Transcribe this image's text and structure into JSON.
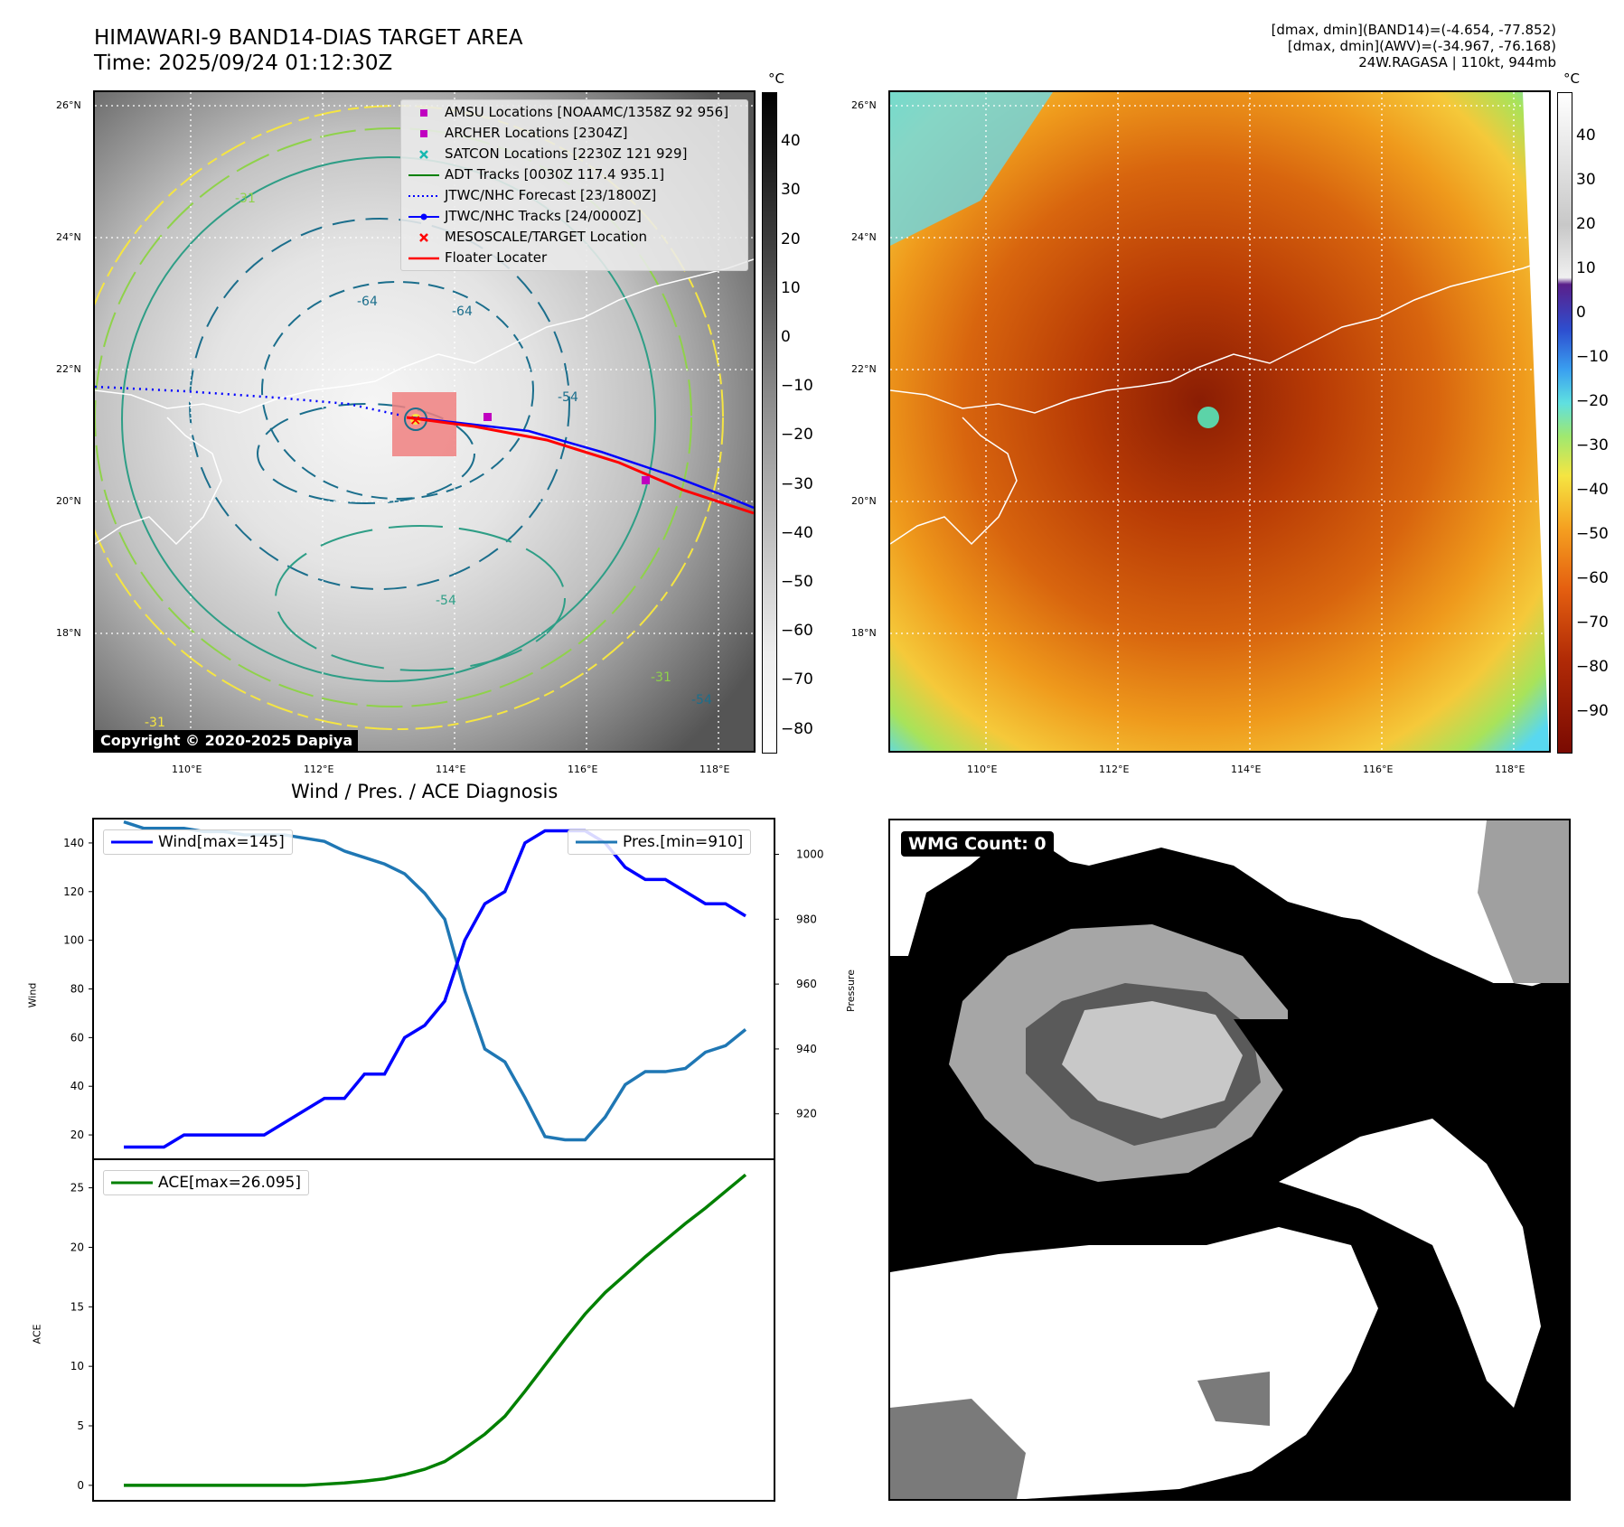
{
  "header": {
    "title_line1": "HIMAWARI-9 BAND14-DIAS TARGET AREA",
    "title_line2": "Time: 2025/09/24 01:12:30Z",
    "stats_line1": "[dmax, dmin](BAND14)=(-4.654, -77.852)",
    "stats_line2": "[dmax, dmin](AWV)=(-34.967, -76.168)",
    "stats_line3": "24W.RAGASA | 110kt, 944mb"
  },
  "map": {
    "lat_labels": [
      "26°N",
      "24°N",
      "22°N",
      "20°N",
      "18°N"
    ],
    "lon_labels": [
      "110°E",
      "112°E",
      "114°E",
      "116°E",
      "118°E"
    ],
    "contour_labels": [
      "-64",
      "-64",
      "-54",
      "-54",
      "-31",
      "-31",
      "-31",
      "-54"
    ],
    "copyright": "Copyright © 2020-2025 Dapiya",
    "legend": [
      {
        "label": "AMSU Locations [NOAAMC/1358Z 92 956]",
        "symbol": "square",
        "color": "#c000c0"
      },
      {
        "label": "ARCHER Locations [2304Z]",
        "symbol": "square",
        "color": "#c000c0"
      },
      {
        "label": "SATCON Locations [2230Z 121 929]",
        "symbol": "x",
        "color": "#17b8b0"
      },
      {
        "label": "ADT Tracks [0030Z 117.4 935.1]",
        "symbol": "line",
        "color": "#008000"
      },
      {
        "label": "JTWC/NHC Forecast [23/1800Z]",
        "symbol": "dotted",
        "color": "#0000ff"
      },
      {
        "label": "JTWC/NHC Tracks [24/0000Z]",
        "symbol": "line-dot",
        "color": "#0000ff"
      },
      {
        "label": "MESOSCALE/TARGET Location",
        "symbol": "x",
        "color": "#ff0000"
      },
      {
        "label": "Floater Locater",
        "symbol": "line",
        "color": "#ff0000"
      }
    ],
    "colorbar_unit": "°C",
    "gray_colorbar_ticks": [
      40,
      30,
      20,
      10,
      0,
      -10,
      -20,
      -30,
      -40,
      -50,
      -60,
      -70,
      -80
    ],
    "color_colorbar_ticks": [
      40,
      30,
      20,
      10,
      0,
      -10,
      -20,
      -30,
      -40,
      -50,
      -60,
      -70,
      -80,
      -90
    ]
  },
  "diagnosis": {
    "title": "Wind / Pres. / ACE Diagnosis",
    "wbox_label": "WMG Count: 0"
  },
  "chart_data": [
    {
      "type": "line",
      "title": "Wind / Pres. / ACE Diagnosis",
      "ylabel": "Wind",
      "y2label": "Pressure",
      "ylim": [
        10,
        150
      ],
      "y2lim": [
        906,
        1011
      ],
      "yticks": [
        20,
        40,
        60,
        80,
        100,
        120,
        140
      ],
      "y2ticks": [
        920,
        940,
        960,
        980,
        1000
      ],
      "series": [
        {
          "name": "Wind[max=145]",
          "axis": "left",
          "color": "#0000ff",
          "values": [
            15,
            15,
            15,
            20,
            20,
            20,
            20,
            20,
            25,
            30,
            35,
            35,
            45,
            45,
            60,
            65,
            75,
            100,
            115,
            120,
            140,
            145,
            145,
            145,
            140,
            130,
            125,
            125,
            120,
            115,
            115,
            110
          ]
        },
        {
          "name": "Pres.[min=910]",
          "axis": "right",
          "color": "#1f77b4",
          "values": [
            1010,
            1008,
            1008,
            1008,
            1007,
            1007,
            1006,
            1006,
            1006,
            1005,
            1004,
            1001,
            999,
            997,
            994,
            988,
            980,
            958,
            940,
            936,
            925,
            913,
            912,
            912,
            919,
            929,
            933,
            933,
            934,
            939,
            941,
            946
          ]
        }
      ]
    },
    {
      "type": "line",
      "ylabel": "ACE",
      "ylim": [
        -1.3,
        27.4
      ],
      "yticks": [
        0,
        5,
        10,
        15,
        20,
        25
      ],
      "series": [
        {
          "name": "ACE[max=26.095]",
          "color": "#008000",
          "values": [
            0,
            0,
            0,
            0,
            0,
            0,
            0,
            0,
            0,
            0,
            0.1,
            0.2,
            0.35,
            0.55,
            0.9,
            1.35,
            2.0,
            3.1,
            4.3,
            5.8,
            7.9,
            10.1,
            12.3,
            14.4,
            16.2,
            17.7,
            19.2,
            20.6,
            22.0,
            23.3,
            24.7,
            26.095
          ]
        }
      ]
    }
  ]
}
